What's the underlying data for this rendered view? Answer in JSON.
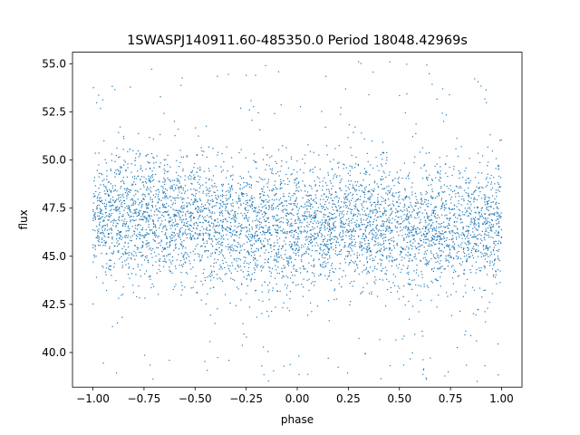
{
  "chart_data": {
    "type": "scatter",
    "title": "1SWASPJ140911.60-485350.0 Period 18048.42969s",
    "xlabel": "phase",
    "ylabel": "flux",
    "xlim": [
      -1.1,
      1.1
    ],
    "ylim": [
      38.2,
      55.6
    ],
    "x_ticks": [
      -1.0,
      -0.75,
      -0.5,
      -0.25,
      0.0,
      0.25,
      0.5,
      0.75,
      1.0
    ],
    "x_tick_labels": [
      "−1.00",
      "−0.75",
      "−0.50",
      "−0.25",
      "0.00",
      "0.25",
      "0.50",
      "0.75",
      "1.00"
    ],
    "y_ticks": [
      40.0,
      42.5,
      45.0,
      47.5,
      50.0,
      52.5,
      55.0
    ],
    "y_tick_labels": [
      "40.0",
      "42.5",
      "45.0",
      "47.5",
      "50.0",
      "52.5",
      "55.0"
    ],
    "grid": false,
    "marker_color": "#1f77b4",
    "series": [
      {
        "x_range": [
          -1.0,
          1.0
        ],
        "y_range": [
          38.5,
          55.2
        ],
        "density_profile": [
          {
            "x": -1.0,
            "y_center": 47.0,
            "y_spread": 1.6
          },
          {
            "x": -0.75,
            "y_center": 47.1,
            "y_spread": 1.6
          },
          {
            "x": -0.5,
            "y_center": 46.9,
            "y_spread": 1.6
          },
          {
            "x": -0.25,
            "y_center": 46.6,
            "y_spread": 1.6
          },
          {
            "x": 0.0,
            "y_center": 46.5,
            "y_spread": 1.6
          },
          {
            "x": 0.25,
            "y_center": 46.8,
            "y_spread": 1.6
          },
          {
            "x": 0.5,
            "y_center": 46.5,
            "y_spread": 1.6
          },
          {
            "x": 0.75,
            "y_center": 46.4,
            "y_spread": 1.6
          },
          {
            "x": 1.0,
            "y_center": 46.9,
            "y_spread": 1.6
          }
        ]
      }
    ]
  }
}
